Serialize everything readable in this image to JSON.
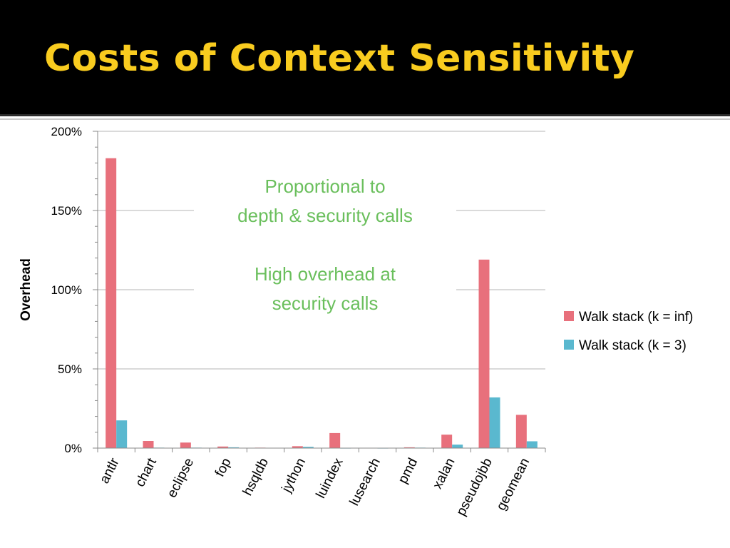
{
  "slide": {
    "title": "Costs of Context Sensitivity"
  },
  "colors": {
    "title_band": "#000000",
    "title_text": "#f9cc1f",
    "series_inf": "#e8707c",
    "series_k3": "#5ab8cf",
    "annotation": "#6abf5c",
    "grid": "#b5b5b5"
  },
  "chart_data": {
    "type": "bar",
    "categories": [
      "antlr",
      "chart",
      "eclipse",
      "fop",
      "hsqldb",
      "jython",
      "luindex",
      "lusearch",
      "pmd",
      "xalan",
      "pseudojbb",
      "geomean"
    ],
    "series": [
      {
        "name": "Walk stack (k = inf)",
        "values": [
          183,
          4.5,
          3.5,
          1,
          0.3,
          1.2,
          9.5,
          0.2,
          0.5,
          8.5,
          119,
          21
        ]
      },
      {
        "name": "Walk stack (k = 3)",
        "values": [
          17.5,
          0.3,
          0.3,
          0.5,
          0.2,
          0.8,
          0,
          0,
          0.3,
          2.2,
          32,
          4.3
        ]
      }
    ],
    "y_axis": {
      "min": 0,
      "max": 200,
      "major_step": 50,
      "minor_step": 10,
      "tick_format": "percent"
    },
    "ytick_labels": [
      "0%",
      "50%",
      "100%",
      "150%",
      "200%"
    ],
    "ylabel": "Overhead",
    "xlabel": "",
    "grid": true,
    "legend_position": "right",
    "annotations": [
      {
        "lines": [
          "Proportional to",
          "depth & security calls"
        ]
      },
      {
        "lines": [
          "High overhead at",
          "security calls"
        ]
      }
    ]
  }
}
